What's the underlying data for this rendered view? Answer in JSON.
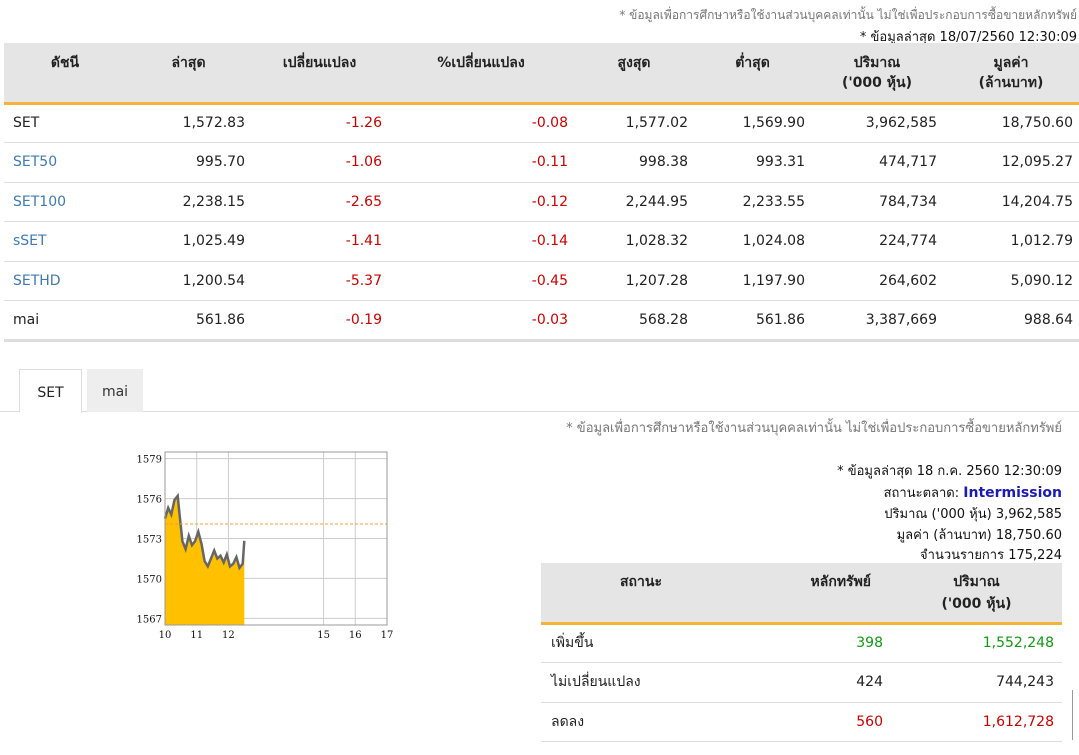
{
  "header": {
    "disclaimer": "* ข้อมูลเพื่อการศึกษาหรือใช้งานส่วนบุคคลเท่านั้น ไม่ใช่เพื่อประกอบการซื้อขายหลักทรัพย์",
    "last_update": "* ข้อมูลล่าสุด 18/07/2560 12:30:09"
  },
  "index_table": {
    "columns": [
      {
        "line1": "ดัชนี",
        "line2": ""
      },
      {
        "line1": "ล่าสุด",
        "line2": ""
      },
      {
        "line1": "เปลี่ยนแปลง",
        "line2": ""
      },
      {
        "line1": "%เปลี่ยนแปลง",
        "line2": ""
      },
      {
        "line1": "สูงสุด",
        "line2": ""
      },
      {
        "line1": "ต่ำสุด",
        "line2": ""
      },
      {
        "line1": "ปริมาณ",
        "line2": "('000 หุ้น)"
      },
      {
        "line1": "มูลค่า",
        "line2": "(ล้านบาท)"
      }
    ],
    "rows": [
      {
        "name": "SET",
        "last": "1,572.83",
        "change": "-1.26",
        "pct": "-0.08",
        "high": "1,577.02",
        "low": "1,569.90",
        "volume": "3,962,585",
        "value": "18,750.60"
      },
      {
        "name": "SET50",
        "last": "995.70",
        "change": "-1.06",
        "pct": "-0.11",
        "high": "998.38",
        "low": "993.31",
        "volume": "474,717",
        "value": "12,095.27"
      },
      {
        "name": "SET100",
        "last": "2,238.15",
        "change": "-2.65",
        "pct": "-0.12",
        "high": "2,244.95",
        "low": "2,233.55",
        "volume": "784,734",
        "value": "14,204.75"
      },
      {
        "name": "sSET",
        "last": "1,025.49",
        "change": "-1.41",
        "pct": "-0.14",
        "high": "1,028.32",
        "low": "1,024.08",
        "volume": "224,774",
        "value": "1,012.79"
      },
      {
        "name": "SETHD",
        "last": "1,200.54",
        "change": "-5.37",
        "pct": "-0.45",
        "high": "1,207.28",
        "low": "1,197.90",
        "volume": "264,602",
        "value": "5,090.12"
      },
      {
        "name": "mai",
        "last": "561.86",
        "change": "-0.19",
        "pct": "-0.03",
        "high": "568.28",
        "low": "561.86",
        "volume": "3,387,669",
        "value": "988.64"
      }
    ]
  },
  "tabs": [
    {
      "label": "SET",
      "active": true
    },
    {
      "label": "mai",
      "active": false
    }
  ],
  "chart_data": {
    "type": "area",
    "title": "",
    "xlabel": "",
    "ylabel": "",
    "x_ticks": [
      "10",
      "11",
      "12",
      "15",
      "16",
      "17"
    ],
    "y_ticks": [
      "1567",
      "1570",
      "1573",
      "1576",
      "1579"
    ],
    "ylim": [
      1566.5,
      1579.5
    ],
    "xlim": [
      10,
      17
    ],
    "prev_close": 1574.09,
    "grid": true,
    "colors": {
      "fill": "#ffc000",
      "line": "#666666",
      "ref": "#f0a030",
      "grid": "#cccccc"
    },
    "series": [
      {
        "x": [
          10.0,
          10.1,
          10.2,
          10.3,
          10.4,
          10.45,
          10.55,
          10.65,
          10.75,
          10.85,
          10.95,
          11.05,
          11.15,
          11.25,
          11.35,
          11.45,
          11.55,
          11.65,
          11.75,
          11.85,
          11.95,
          12.05,
          12.15,
          12.25,
          12.35,
          12.45,
          12.5
        ],
        "y": [
          1574.5,
          1575.3,
          1574.8,
          1575.9,
          1576.2,
          1575.0,
          1572.8,
          1572.2,
          1573.2,
          1572.5,
          1572.8,
          1573.5,
          1572.6,
          1571.3,
          1570.9,
          1571.5,
          1572.1,
          1571.5,
          1571.7,
          1571.2,
          1571.8,
          1570.9,
          1571.1,
          1571.6,
          1570.8,
          1571.1,
          1572.83
        ]
      }
    ]
  },
  "summary": {
    "disclaimer": "* ข้อมูลเพื่อการศึกษาหรือใช้งานส่วนบุคคลเท่านั้น ไม่ใช่เพื่อประกอบการซื้อขายหลักทรัพย์",
    "last_update": "* ข้อมูลล่าสุด 18 ก.ค. 2560 12:30:09",
    "status_label": "สถานะตลาด:",
    "status_value": "Intermission",
    "volume_label": "ปริมาณ ('000 หุ้น)",
    "volume_value": "3,962,585",
    "value_label": "มูลค่า (ล้านบาท)",
    "value_value": "18,750.60",
    "trades_label": "จำนวนรายการ",
    "trades_value": "175,224"
  },
  "status_table": {
    "col_status": "สถานะ",
    "col_securities": "หลักทรัพย์",
    "col_volume_line1": "ปริมาณ",
    "col_volume_line2": "('000 หุ้น)",
    "rows": [
      {
        "label": "เพิ่มขึ้น",
        "count": "398",
        "volume": "1,552,248",
        "color": "#119911"
      },
      {
        "label": "ไม่เปลี่ยนแปลง",
        "count": "424",
        "volume": "744,243",
        "color": "#222222"
      },
      {
        "label": "ลดลง",
        "count": "560",
        "volume": "1,612,728",
        "color": "#cc0000"
      }
    ]
  }
}
